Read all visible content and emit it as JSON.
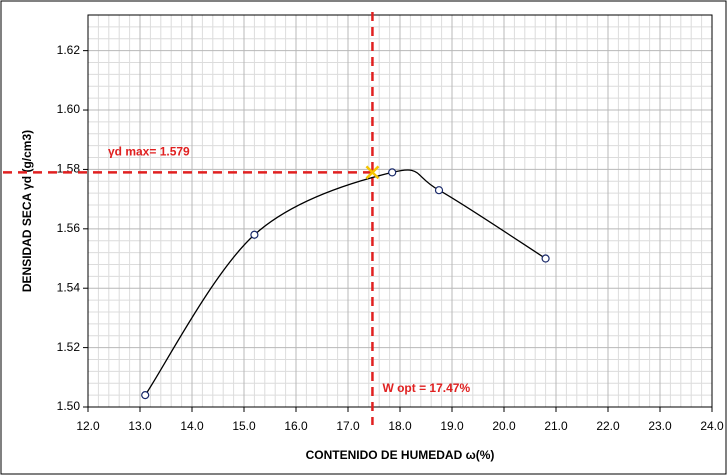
{
  "chart_data": {
    "type": "line",
    "x_label": "CONTENIDO DE HUMEDAD ω(%)",
    "y_label": "DENSIDAD SECA  γd (g/cm3)",
    "series": [
      {
        "color": "#000000",
        "x": [
          13.1,
          15.2,
          17.85,
          18.75,
          20.8
        ],
        "values": [
          1.504,
          1.558,
          1.579,
          1.573,
          1.55
        ]
      }
    ],
    "optimum": {
      "x": 17.47,
      "y": 1.579,
      "color": "#e02020",
      "marker_color": "#f5c400"
    },
    "annotations": [
      "γd max= 1.579",
      "W opt = 17.47%"
    ],
    "xlim": [
      12,
      24
    ],
    "xticks": [
      {
        "value": 12,
        "label": "12.0"
      },
      {
        "value": 13,
        "label": "13.0"
      },
      {
        "value": 14,
        "label": "14.0"
      },
      {
        "value": 15,
        "label": "15.0"
      },
      {
        "value": 16,
        "label": "16.0"
      },
      {
        "value": 17,
        "label": "17.0"
      },
      {
        "value": 18,
        "label": "18.0"
      },
      {
        "value": 19,
        "label": "19.0"
      },
      {
        "value": 20,
        "label": "20.0"
      },
      {
        "value": 21,
        "label": "21.0"
      },
      {
        "value": 22,
        "label": "22.0"
      },
      {
        "value": 23,
        "label": "23.0"
      },
      {
        "value": 24,
        "label": "24.0"
      }
    ],
    "ylim": [
      1.5,
      1.632
    ],
    "yticks": [
      {
        "value": 1.5,
        "label": "1.50"
      },
      {
        "value": 1.52,
        "label": "1.52"
      },
      {
        "value": 1.54,
        "label": "1.54"
      },
      {
        "value": 1.56,
        "label": "1.56"
      },
      {
        "value": 1.58,
        "label": "1.58"
      },
      {
        "value": 1.6,
        "label": "1.60"
      },
      {
        "value": 1.62,
        "label": "1.62"
      }
    ],
    "grid": true
  }
}
